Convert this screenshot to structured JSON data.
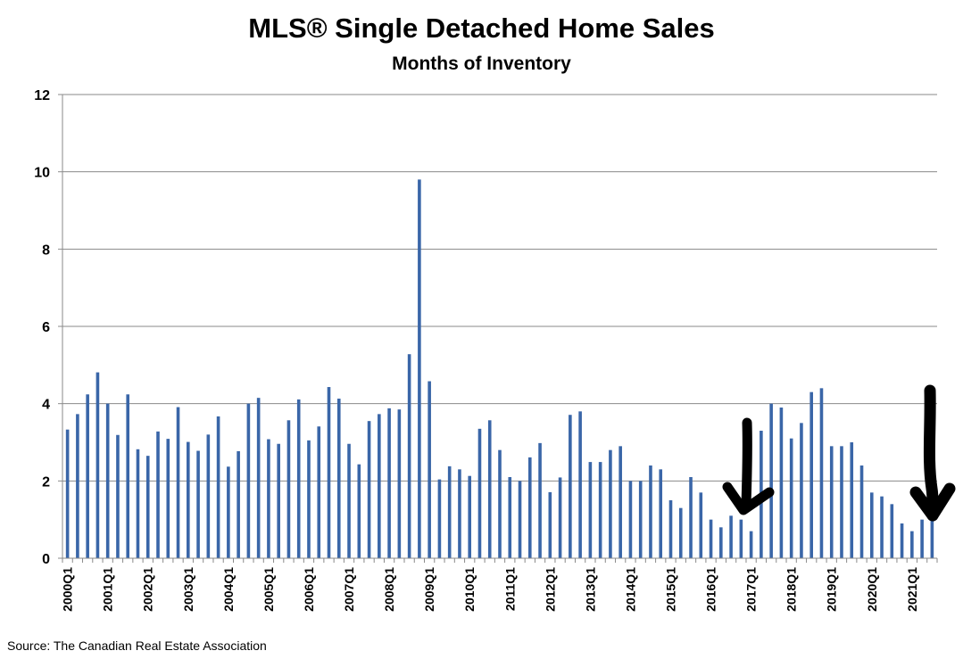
{
  "chart_data": {
    "type": "bar",
    "title": "MLS® Single Detached Home Sales",
    "subtitle": "Months of Inventory",
    "xlabel": "",
    "ylabel": "",
    "ylim": [
      0,
      12
    ],
    "yticks": [
      0,
      2,
      4,
      6,
      8,
      10,
      12
    ],
    "grid": true,
    "bar_color": "#3a66a8",
    "annotation_color": "#000000",
    "annotations": [
      "arrow-2016Q4",
      "arrow-2021Q3"
    ],
    "categories": [
      "2000Q1",
      "2000Q2",
      "2000Q3",
      "2000Q4",
      "2001Q1",
      "2001Q2",
      "2001Q3",
      "2001Q4",
      "2002Q1",
      "2002Q2",
      "2002Q3",
      "2002Q4",
      "2003Q1",
      "2003Q2",
      "2003Q3",
      "2003Q4",
      "2004Q1",
      "2004Q2",
      "2004Q3",
      "2004Q4",
      "2005Q1",
      "2005Q2",
      "2005Q3",
      "2005Q4",
      "2006Q1",
      "2006Q2",
      "2006Q3",
      "2006Q4",
      "2007Q1",
      "2007Q2",
      "2007Q3",
      "2007Q4",
      "2008Q1",
      "2008Q2",
      "2008Q3",
      "2008Q4",
      "2009Q1",
      "2009Q2",
      "2009Q3",
      "2009Q4",
      "2010Q1",
      "2010Q2",
      "2010Q3",
      "2010Q4",
      "2011Q1",
      "2011Q2",
      "2011Q3",
      "2011Q4",
      "2012Q1",
      "2012Q2",
      "2012Q3",
      "2012Q4",
      "2013Q1",
      "2013Q2",
      "2013Q3",
      "2013Q4",
      "2014Q1",
      "2014Q2",
      "2014Q3",
      "2014Q4",
      "2015Q1",
      "2015Q2",
      "2015Q3",
      "2015Q4",
      "2016Q1",
      "2016Q2",
      "2016Q3",
      "2016Q4",
      "2017Q1",
      "2017Q2",
      "2017Q3",
      "2017Q4",
      "2018Q1",
      "2018Q2",
      "2018Q3",
      "2018Q4",
      "2019Q1",
      "2019Q2",
      "2019Q3",
      "2019Q4",
      "2020Q1",
      "2020Q2",
      "2020Q3",
      "2020Q4",
      "2021Q1",
      "2021Q2",
      "2021Q3"
    ],
    "tick_labels": [
      "2000Q1",
      "2001Q1",
      "2002Q1",
      "2003Q1",
      "2004Q1",
      "2005Q1",
      "2006Q1",
      "2007Q1",
      "2008Q1",
      "2009Q1",
      "2010Q1",
      "2011Q1",
      "2012Q1",
      "2013Q1",
      "2014Q1",
      "2015Q1",
      "2016Q1",
      "2017Q1",
      "2018Q1",
      "2019Q1",
      "2020Q1",
      "2021Q1"
    ],
    "values": [
      3.33,
      3.73,
      4.24,
      4.81,
      4.0,
      3.19,
      4.24,
      2.82,
      2.65,
      3.28,
      3.09,
      3.91,
      3.01,
      2.78,
      3.2,
      3.67,
      2.37,
      2.77,
      4.0,
      4.15,
      3.08,
      2.96,
      3.57,
      4.11,
      3.05,
      3.41,
      4.43,
      4.13,
      2.96,
      2.43,
      3.55,
      3.73,
      3.88,
      3.85,
      5.28,
      9.8,
      4.58,
      2.04,
      2.38,
      2.3,
      2.13,
      3.35,
      3.57,
      2.8,
      2.1,
      2.0,
      2.61,
      2.98,
      1.71,
      2.09,
      3.71,
      3.8,
      2.49,
      2.49,
      2.8,
      2.9,
      2.0,
      2.0,
      2.4,
      2.3,
      1.5,
      1.3,
      2.1,
      1.7,
      1.0,
      0.8,
      1.1,
      1.0,
      0.7,
      3.3,
      4.0,
      3.9,
      3.1,
      3.5,
      4.3,
      4.4,
      2.9,
      2.9,
      3.0,
      2.4,
      1.7,
      1.6,
      1.4,
      0.9,
      0.7,
      1.0,
      1.2
    ]
  },
  "source": "Source: The Canadian Real Estate Association"
}
